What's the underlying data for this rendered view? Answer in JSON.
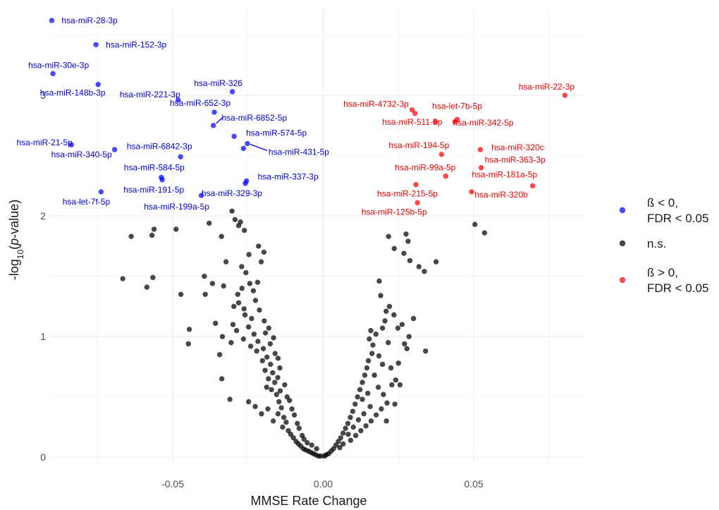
{
  "chart_data": {
    "type": "scatter",
    "title": "",
    "xlabel": "MMSE Rate Change",
    "ylabel": {
      "prefix": "-log",
      "sub": "10",
      "open": "(",
      "italic": "p",
      "close": "-value)"
    },
    "xlim": [
      -0.091,
      0.087
    ],
    "ylim": [
      -0.04,
      3.72
    ],
    "x_ticks": [
      -0.05,
      0,
      0.05
    ],
    "x_tick_labels": [
      "-0.05",
      "0.00",
      "0.05"
    ],
    "y_ticks": [
      0,
      1,
      2,
      3
    ],
    "y_tick_labels": [
      "0",
      "1",
      "2",
      "3"
    ],
    "grid": true,
    "legend_position": "right",
    "colors": {
      "neg": "#0000ff",
      "ns": "#000000",
      "pos": "#ff0000",
      "neg_text": "#0000dd",
      "pos_text": "#ee0000",
      "grid": "#ebebeb"
    },
    "legend": [
      {
        "key": "neg",
        "lines": [
          "ß < 0,",
          "FDR < 0.05"
        ]
      },
      {
        "key": "ns",
        "lines": [
          "n.s."
        ]
      },
      {
        "key": "pos",
        "lines": [
          "ß > 0,",
          "FDR < 0.05"
        ]
      }
    ],
    "series": [
      {
        "key": "neg",
        "points": [
          {
            "x": -0.0902,
            "y": 3.62,
            "label": "hsa-miR-28-3p"
          },
          {
            "x": -0.0755,
            "y": 3.42,
            "label": "hsa-miR-152-3p"
          },
          {
            "x": -0.0898,
            "y": 3.18,
            "label": "hsa-miR-30e-3p"
          },
          {
            "x": -0.0748,
            "y": 3.09,
            "label": "hsa-miR-148b-3p"
          },
          {
            "x": -0.0482,
            "y": 2.96,
            "label": "hsa-miR-221-3p"
          },
          {
            "x": -0.0302,
            "y": 3.03,
            "label": "hsa-miR-326"
          },
          {
            "x": -0.0362,
            "y": 2.86,
            "label": "hsa-miR-652-3p"
          },
          {
            "x": -0.0365,
            "y": 2.75,
            "label": "hsa-miR-6852-5p"
          },
          {
            "x": -0.0296,
            "y": 2.66,
            "label": "hsa-miR-574-5p"
          },
          {
            "x": -0.0252,
            "y": 2.6,
            "label": "hsa-miR-431-5p"
          },
          {
            "x": -0.0265,
            "y": 2.56,
            "label": ""
          },
          {
            "x": -0.0837,
            "y": 2.59,
            "label": "hsa-miR-21-5p"
          },
          {
            "x": -0.0693,
            "y": 2.55,
            "label": "hsa-miR-340-5p"
          },
          {
            "x": -0.0474,
            "y": 2.49,
            "label": "hsa-miR-6842-3p"
          },
          {
            "x": -0.0538,
            "y": 2.32,
            "label": "hsa-miR-584-5p"
          },
          {
            "x": -0.0535,
            "y": 2.3,
            "label": "hsa-miR-191-5p"
          },
          {
            "x": -0.0255,
            "y": 2.29,
            "label": "hsa-miR-337-3p"
          },
          {
            "x": -0.0259,
            "y": 2.27,
            "label": "hsa-miR-329-3p"
          },
          {
            "x": -0.0405,
            "y": 2.17,
            "label": "hsa-miR-199a-5p"
          },
          {
            "x": -0.0738,
            "y": 2.2,
            "label": "hsa-let-7f-5p"
          }
        ]
      },
      {
        "key": "pos",
        "points": [
          {
            "x": 0.0803,
            "y": 3.0,
            "label": "hsa-miR-22-3p"
          },
          {
            "x": 0.0295,
            "y": 2.88,
            "label": "hsa-miR-4732-3p"
          },
          {
            "x": 0.0305,
            "y": 2.85,
            "label": ""
          },
          {
            "x": 0.0373,
            "y": 2.78,
            "label": "hsa-miR-511-5p"
          },
          {
            "x": 0.0445,
            "y": 2.8,
            "label": "hsa-let-7b-5p"
          },
          {
            "x": 0.0438,
            "y": 2.78,
            "label": "hsa-miR-342-5p"
          },
          {
            "x": 0.0393,
            "y": 2.51,
            "label": "hsa-miR-194-5p"
          },
          {
            "x": 0.0522,
            "y": 2.55,
            "label": "hsa-miR-320c"
          },
          {
            "x": 0.0525,
            "y": 2.4,
            "label": "hsa-miR-363-3p"
          },
          {
            "x": 0.0407,
            "y": 2.33,
            "label": "hsa-miR-99a-5p"
          },
          {
            "x": 0.0696,
            "y": 2.25,
            "label": "hsa-miR-181a-5p"
          },
          {
            "x": 0.0308,
            "y": 2.26,
            "label": "hsa-miR-215-5p"
          },
          {
            "x": 0.0493,
            "y": 2.2,
            "label": "hsa-miR-320b"
          },
          {
            "x": 0.0313,
            "y": 2.11,
            "label": "hsa-miR-125b-5p"
          }
        ]
      },
      {
        "key": "ns",
        "points": [
          {
            "x": -0.0638,
            "y": 1.83
          },
          {
            "x": -0.0562,
            "y": 1.89
          },
          {
            "x": -0.0489,
            "y": 1.89
          },
          {
            "x": -0.0569,
            "y": 1.84
          },
          {
            "x": -0.0666,
            "y": 1.48
          },
          {
            "x": -0.0586,
            "y": 1.41
          },
          {
            "x": -0.0566,
            "y": 1.49
          },
          {
            "x": -0.0473,
            "y": 1.35
          },
          {
            "x": -0.0448,
            "y": 0.94
          },
          {
            "x": -0.0445,
            "y": 1.06
          },
          {
            "x": -0.0379,
            "y": 1.94
          },
          {
            "x": -0.0293,
            "y": 1.97
          },
          {
            "x": -0.0303,
            "y": 2.04
          },
          {
            "x": -0.0338,
            "y": 1.83
          },
          {
            "x": -0.0262,
            "y": 1.88
          },
          {
            "x": -0.0275,
            "y": 1.95
          },
          {
            "x": -0.0281,
            "y": 1.92
          },
          {
            "x": -0.0323,
            "y": 1.62
          },
          {
            "x": -0.0395,
            "y": 1.5
          },
          {
            "x": -0.0368,
            "y": 1.44
          },
          {
            "x": -0.0392,
            "y": 1.35
          },
          {
            "x": -0.0331,
            "y": 1.42
          },
          {
            "x": -0.0358,
            "y": 1.11
          },
          {
            "x": -0.0335,
            "y": 1.0
          },
          {
            "x": -0.0344,
            "y": 0.85
          },
          {
            "x": -0.0306,
            "y": 0.95
          },
          {
            "x": -0.0337,
            "y": 0.65
          },
          {
            "x": -0.031,
            "y": 0.48
          },
          {
            "x": -0.0271,
            "y": 1.58
          },
          {
            "x": -0.0247,
            "y": 1.68
          },
          {
            "x": -0.0215,
            "y": 1.75
          },
          {
            "x": -0.0197,
            "y": 1.7
          },
          {
            "x": -0.0206,
            "y": 1.62
          },
          {
            "x": -0.0257,
            "y": 1.53
          },
          {
            "x": -0.0244,
            "y": 1.44
          },
          {
            "x": -0.0232,
            "y": 1.38
          },
          {
            "x": -0.0225,
            "y": 1.3
          },
          {
            "x": -0.0284,
            "y": 1.35
          },
          {
            "x": -0.0297,
            "y": 1.25
          },
          {
            "x": -0.026,
            "y": 1.18
          },
          {
            "x": -0.0248,
            "y": 1.08
          },
          {
            "x": -0.03,
            "y": 1.1
          },
          {
            "x": -0.0288,
            "y": 1.05
          },
          {
            "x": -0.0265,
            "y": 0.98
          },
          {
            "x": -0.0241,
            "y": 0.92
          },
          {
            "x": -0.0221,
            "y": 0.88
          },
          {
            "x": -0.0212,
            "y": 1.22
          },
          {
            "x": -0.0196,
            "y": 1.13
          },
          {
            "x": -0.0181,
            "y": 1.07
          },
          {
            "x": -0.023,
            "y": 1.02
          },
          {
            "x": -0.0217,
            "y": 0.96
          },
          {
            "x": -0.0199,
            "y": 0.9
          },
          {
            "x": -0.0187,
            "y": 0.83
          },
          {
            "x": -0.0175,
            "y": 0.77
          },
          {
            "x": -0.0168,
            "y": 0.7
          },
          {
            "x": -0.0202,
            "y": 0.8
          },
          {
            "x": -0.0193,
            "y": 0.72
          },
          {
            "x": -0.0182,
            "y": 0.65
          },
          {
            "x": -0.0161,
            "y": 0.62
          },
          {
            "x": -0.0172,
            "y": 0.56
          },
          {
            "x": -0.0155,
            "y": 0.52
          },
          {
            "x": -0.0147,
            "y": 0.46
          },
          {
            "x": -0.0139,
            "y": 0.41
          },
          {
            "x": -0.015,
            "y": 0.36
          },
          {
            "x": -0.0131,
            "y": 0.33
          },
          {
            "x": -0.0123,
            "y": 0.29
          },
          {
            "x": -0.0135,
            "y": 0.25
          },
          {
            "x": -0.0116,
            "y": 0.22
          },
          {
            "x": -0.0108,
            "y": 0.19
          },
          {
            "x": -0.0099,
            "y": 0.16
          },
          {
            "x": -0.009,
            "y": 0.13
          },
          {
            "x": -0.0082,
            "y": 0.11
          },
          {
            "x": -0.0074,
            "y": 0.09
          },
          {
            "x": -0.0066,
            "y": 0.07
          },
          {
            "x": -0.0058,
            "y": 0.06
          },
          {
            "x": -0.0049,
            "y": 0.05
          },
          {
            "x": -0.0041,
            "y": 0.04
          },
          {
            "x": -0.0033,
            "y": 0.03
          },
          {
            "x": -0.0025,
            "y": 0.02
          },
          {
            "x": -0.0016,
            "y": 0.01
          },
          {
            "x": -0.0008,
            "y": 0.01
          },
          {
            "x": -0.0184,
            "y": 0.4
          },
          {
            "x": -0.0166,
            "y": 0.3
          },
          {
            "x": -0.0226,
            "y": 0.42
          },
          {
            "x": -0.0248,
            "y": 0.46
          },
          {
            "x": -0.0205,
            "y": 0.36
          },
          {
            "x": -0.0188,
            "y": 0.58
          },
          {
            "x": -0.0176,
            "y": 0.94
          },
          {
            "x": -0.016,
            "y": 0.86
          },
          {
            "x": -0.0144,
            "y": 0.74
          },
          {
            "x": -0.0128,
            "y": 0.6
          },
          {
            "x": -0.0112,
            "y": 0.47
          },
          {
            "x": -0.0096,
            "y": 0.35
          },
          {
            "x": -0.008,
            "y": 0.24
          },
          {
            "x": -0.0064,
            "y": 0.15
          },
          {
            "x": -0.0053,
            "y": 0.12
          },
          {
            "x": -0.0038,
            "y": 0.1
          },
          {
            "x": -0.0022,
            "y": 0.07
          },
          {
            "x": -0.0143,
            "y": 0.55
          },
          {
            "x": -0.0151,
            "y": 0.66
          },
          {
            "x": -0.012,
            "y": 0.5
          },
          {
            "x": -0.027,
            "y": 1.4
          },
          {
            "x": -0.0192,
            "y": 1.03
          },
          {
            "x": -0.0218,
            "y": 1.45
          },
          {
            "x": -0.0281,
            "y": 1.28
          },
          {
            "x": -0.0263,
            "y": 1.23
          },
          {
            "x": -0.0238,
            "y": 1.15
          },
          {
            "x": -0.0104,
            "y": 0.4
          },
          {
            "x": -0.0086,
            "y": 0.28
          },
          {
            "x": -0.007,
            "y": 0.18
          },
          {
            "x": -0.015,
            "y": 0.82
          },
          {
            "x": -0.0165,
            "y": 0.99
          },
          {
            "x": 0.0217,
            "y": 1.83
          },
          {
            "x": 0.0236,
            "y": 1.73
          },
          {
            "x": 0.0275,
            "y": 1.85
          },
          {
            "x": 0.0282,
            "y": 1.79
          },
          {
            "x": 0.0268,
            "y": 1.69
          },
          {
            "x": 0.0288,
            "y": 1.63
          },
          {
            "x": 0.0318,
            "y": 1.58
          },
          {
            "x": 0.0336,
            "y": 1.54
          },
          {
            "x": 0.0375,
            "y": 1.62
          },
          {
            "x": 0.0504,
            "y": 1.93
          },
          {
            "x": 0.0536,
            "y": 1.86
          },
          {
            "x": 0.0186,
            "y": 1.46
          },
          {
            "x": 0.0191,
            "y": 1.34
          },
          {
            "x": 0.0209,
            "y": 1.21
          },
          {
            "x": 0.022,
            "y": 1.25
          },
          {
            "x": 0.0205,
            "y": 1.13
          },
          {
            "x": 0.0235,
            "y": 1.18
          },
          {
            "x": 0.0262,
            "y": 1.1
          },
          {
            "x": 0.0285,
            "y": 1.0
          },
          {
            "x": 0.0278,
            "y": 0.9
          },
          {
            "x": 0.034,
            "y": 0.88
          },
          {
            "x": 0.0158,
            "y": 1.05
          },
          {
            "x": 0.0175,
            "y": 1.02
          },
          {
            "x": 0.0153,
            "y": 0.98
          },
          {
            "x": 0.0165,
            "y": 0.93
          },
          {
            "x": 0.0162,
            "y": 0.86
          },
          {
            "x": 0.015,
            "y": 0.8
          },
          {
            "x": 0.0185,
            "y": 0.84
          },
          {
            "x": 0.0197,
            "y": 0.77
          },
          {
            "x": 0.0225,
            "y": 0.74
          },
          {
            "x": 0.025,
            "y": 0.78
          },
          {
            "x": 0.0241,
            "y": 0.64
          },
          {
            "x": 0.0255,
            "y": 0.6
          },
          {
            "x": 0.0145,
            "y": 0.74
          },
          {
            "x": 0.0138,
            "y": 0.68
          },
          {
            "x": 0.013,
            "y": 0.62
          },
          {
            "x": 0.0122,
            "y": 0.56
          },
          {
            "x": 0.0114,
            "y": 0.5
          },
          {
            "x": 0.0106,
            "y": 0.44
          },
          {
            "x": 0.0098,
            "y": 0.38
          },
          {
            "x": 0.009,
            "y": 0.33
          },
          {
            "x": 0.0082,
            "y": 0.28
          },
          {
            "x": 0.0074,
            "y": 0.24
          },
          {
            "x": 0.0066,
            "y": 0.2
          },
          {
            "x": 0.0058,
            "y": 0.16
          },
          {
            "x": 0.005,
            "y": 0.13
          },
          {
            "x": 0.0042,
            "y": 0.1
          },
          {
            "x": 0.0034,
            "y": 0.07
          },
          {
            "x": 0.0026,
            "y": 0.05
          },
          {
            "x": 0.0018,
            "y": 0.03
          },
          {
            "x": 0.001,
            "y": 0.02
          },
          {
            "x": 0.0004,
            "y": 0.01
          },
          {
            "x": 0.017,
            "y": 0.68
          },
          {
            "x": 0.0183,
            "y": 0.58
          },
          {
            "x": 0.02,
            "y": 0.52
          },
          {
            "x": 0.0212,
            "y": 0.45
          },
          {
            "x": 0.0193,
            "y": 0.4
          },
          {
            "x": 0.0176,
            "y": 0.35
          },
          {
            "x": 0.0159,
            "y": 0.3
          },
          {
            "x": 0.0142,
            "y": 0.26
          },
          {
            "x": 0.0125,
            "y": 0.22
          },
          {
            "x": 0.0108,
            "y": 0.18
          },
          {
            "x": 0.0091,
            "y": 0.14
          },
          {
            "x": 0.0228,
            "y": 0.6
          },
          {
            "x": 0.021,
            "y": 0.3
          },
          {
            "x": 0.0238,
            "y": 0.44
          },
          {
            "x": 0.0135,
            "y": 0.36
          },
          {
            "x": 0.0117,
            "y": 0.31
          },
          {
            "x": 0.01,
            "y": 0.25
          },
          {
            "x": 0.0083,
            "y": 0.19
          },
          {
            "x": 0.0066,
            "y": 0.11
          },
          {
            "x": 0.0055,
            "y": 0.08
          },
          {
            "x": 0.013,
            "y": 0.48
          },
          {
            "x": 0.0148,
            "y": 0.53
          },
          {
            "x": 0.0216,
            "y": 0.95
          },
          {
            "x": 0.0248,
            "y": 1.07
          },
          {
            "x": 0.027,
            "y": 0.94
          },
          {
            "x": 0.03,
            "y": 1.15
          },
          {
            "x": 0.0197,
            "y": 1.07
          },
          {
            "x": 0.0156,
            "y": 0.42
          }
        ]
      }
    ]
  }
}
